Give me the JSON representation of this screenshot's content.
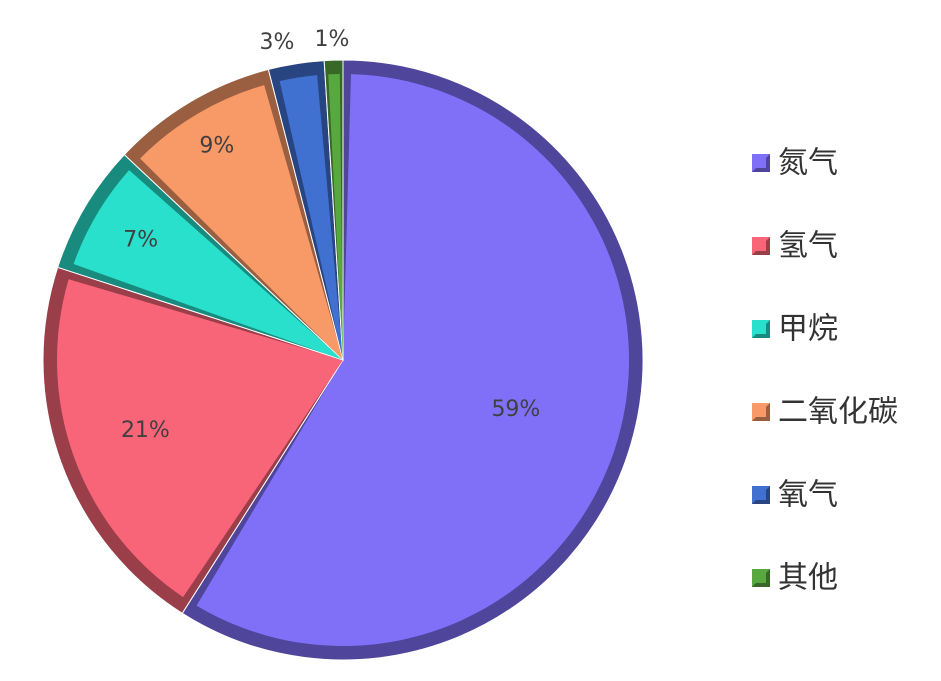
{
  "chart_data": {
    "type": "pie",
    "title": "",
    "categories": [
      "氮气",
      "氢气",
      "甲烷",
      "二氧化碳",
      "氧气",
      "其他"
    ],
    "values": [
      59,
      21,
      7,
      9,
      3,
      1
    ],
    "labels": [
      "59%",
      "21%",
      "7%",
      "9%",
      "3%",
      "1%"
    ],
    "unit": "%",
    "start_angle": "12 o'clock",
    "direction": "clockwise",
    "legend_position": "right",
    "style": "3D beveled",
    "colors": [
      "#8070f8",
      "#f86478",
      "#28e0cc",
      "#f89a68",
      "#4070d0",
      "#58a840"
    ]
  }
}
